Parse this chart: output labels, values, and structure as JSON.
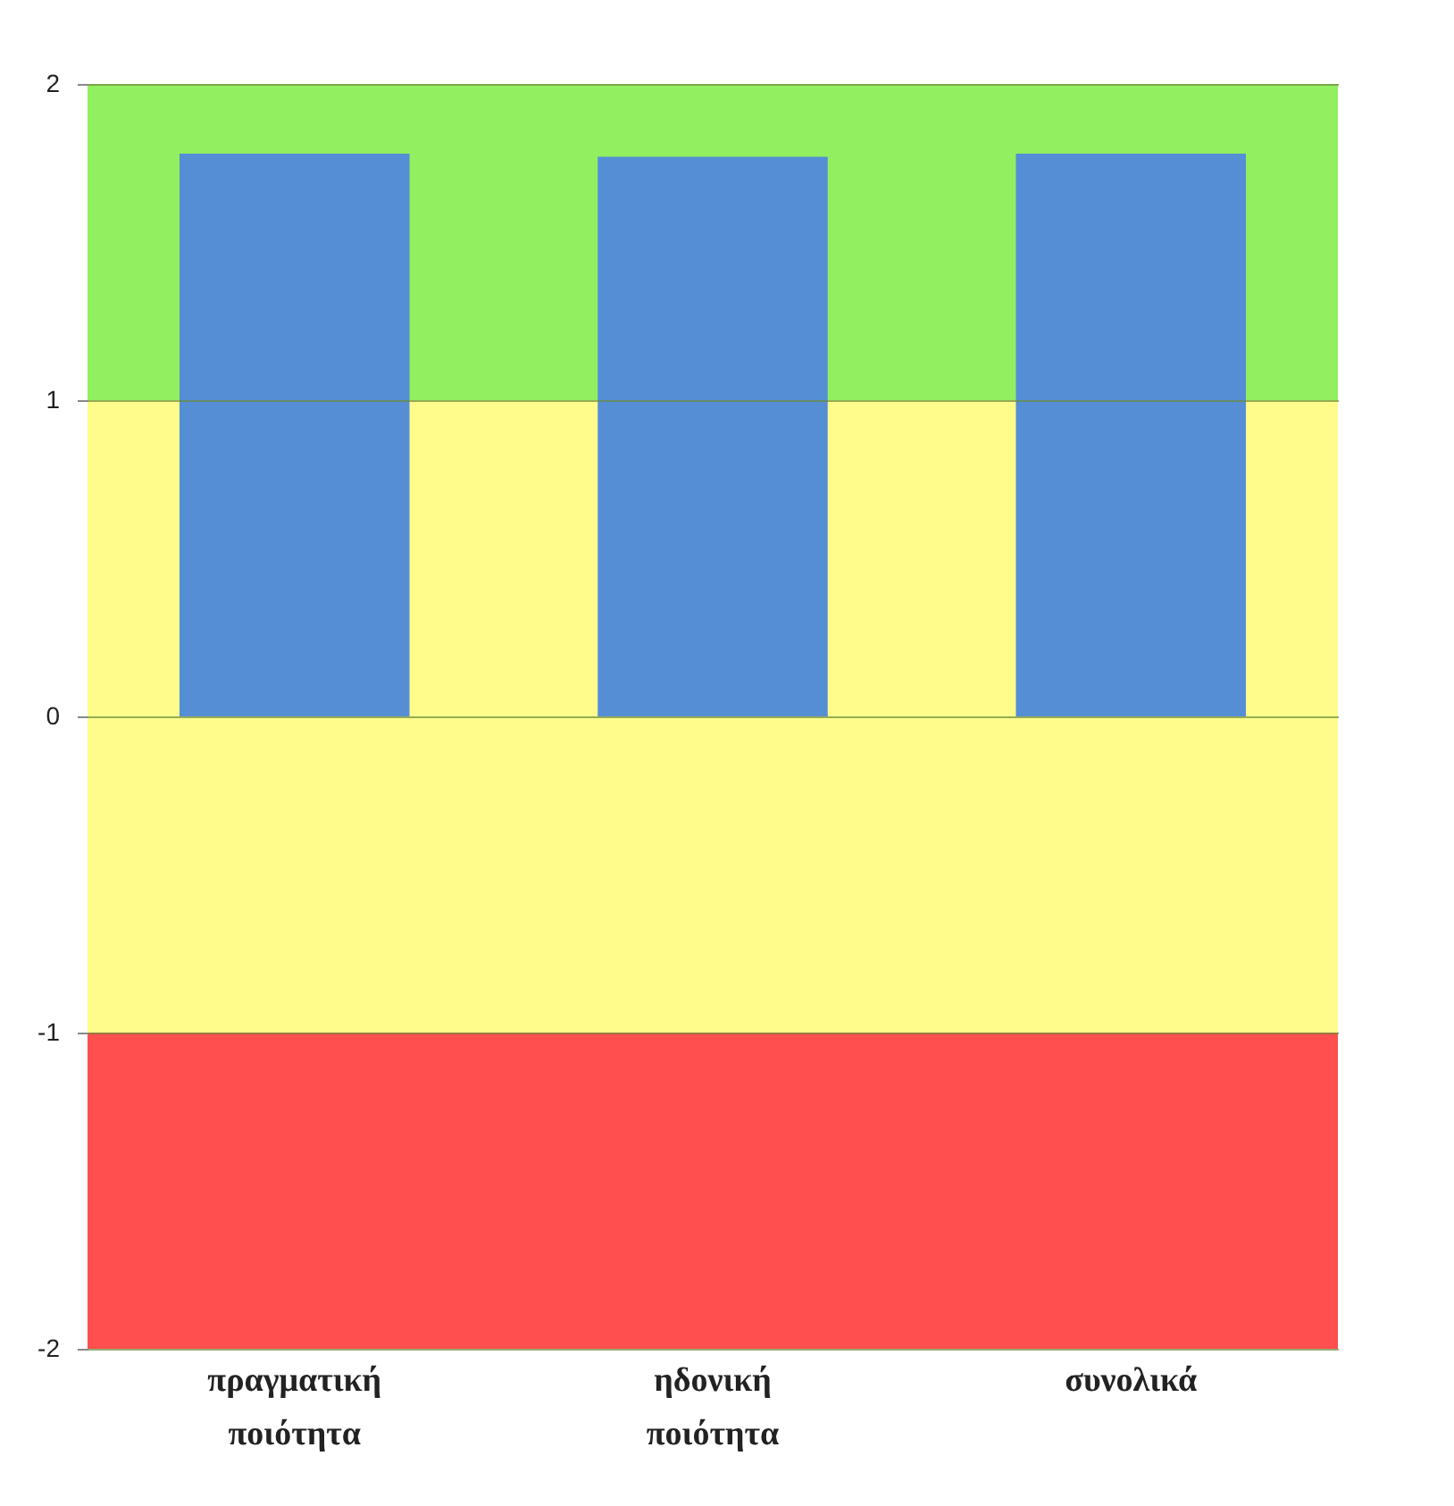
{
  "chart_data": {
    "type": "bar",
    "categories": [
      "πραγματική ποιότητα",
      "ηδονική ποιότητα",
      "συνολικά"
    ],
    "values": [
      1.78,
      1.77,
      1.78
    ],
    "color": "#558ed5",
    "ylim": [
      -2,
      2
    ],
    "yticks": [
      -2,
      -1,
      0,
      1,
      2
    ],
    "grid": "y",
    "bands": [
      {
        "axis": "y",
        "from": 1,
        "to": 2,
        "color": "#92ef5f"
      },
      {
        "axis": "y",
        "from": -1,
        "to": 1,
        "color": "#fffc8c"
      },
      {
        "axis": "y",
        "from": -2,
        "to": -1,
        "color": "#ff4f4f"
      }
    ]
  }
}
